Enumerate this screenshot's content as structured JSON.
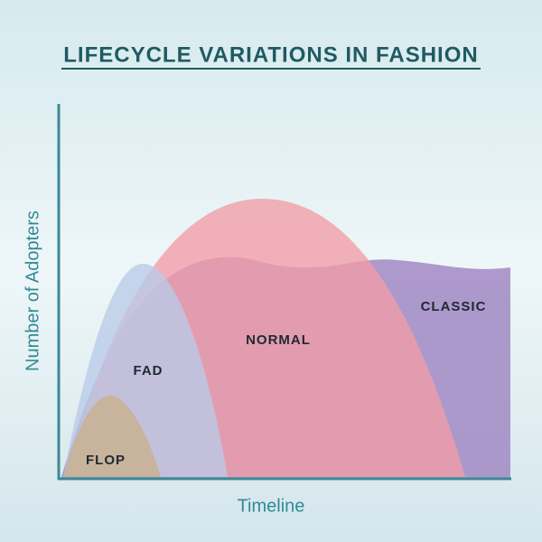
{
  "title": "LIFECYCLE VARIATIONS IN FASHION",
  "axes": {
    "y_label": "Number of Adopters",
    "x_label": "Timeline"
  },
  "curves": [
    {
      "label": "CLASSIC"
    },
    {
      "label": "NORMAL"
    },
    {
      "label": "FAD"
    },
    {
      "label": "FLOP"
    }
  ]
}
